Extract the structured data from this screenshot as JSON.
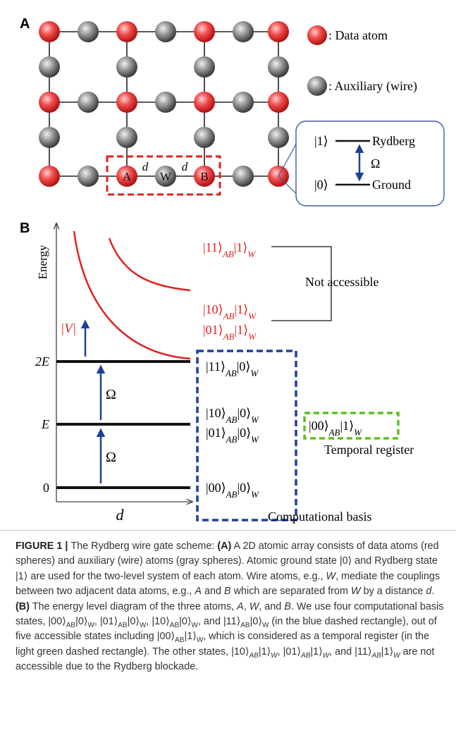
{
  "panel_a": {
    "label": "A",
    "legend": [
      ": Data atom",
      ": Auxiliary (wire)"
    ],
    "atom_labels": [
      "A",
      "W",
      "B"
    ],
    "distance_labels": [
      "d",
      "d"
    ],
    "inset": {
      "upper_state": "|1⟩",
      "upper_name": "Rydberg",
      "coupling": "Ω",
      "lower_state": "|0⟩",
      "lower_name": "Ground"
    }
  },
  "panel_b": {
    "label": "B",
    "y_axis": "Energy",
    "x_axis": "d",
    "levels": [
      "0",
      "E",
      "2E"
    ],
    "couplings": [
      "Ω",
      "Ω"
    ],
    "interaction": "|V|",
    "inaccessible_states": [
      [
        {
          "text": "|11⟩"
        },
        {
          "text": "AB",
          "style": "sub-italic"
        },
        {
          "text": "|1⟩"
        },
        {
          "text": "W",
          "style": "sub-italic"
        }
      ],
      [
        {
          "text": "|10⟩"
        },
        {
          "text": "AB",
          "style": "sub-italic"
        },
        {
          "text": "|1⟩"
        },
        {
          "text": "W",
          "style": "sub-italic"
        }
      ],
      [
        {
          "text": "|01⟩"
        },
        {
          "text": "AB",
          "style": "sub-italic"
        },
        {
          "text": "|1⟩"
        },
        {
          "text": "W",
          "style": "sub-italic"
        }
      ]
    ],
    "not_accessible": "Not accessible",
    "basis_states": [
      [
        {
          "text": "|11⟩"
        },
        {
          "text": "AB",
          "style": "sub-italic"
        },
        {
          "text": "|0⟩"
        },
        {
          "text": "W",
          "style": "sub-italic"
        }
      ],
      [
        {
          "text": "|10⟩"
        },
        {
          "text": "AB",
          "style": "sub-italic"
        },
        {
          "text": "|0⟩"
        },
        {
          "text": "W",
          "style": "sub-italic"
        }
      ],
      [
        {
          "text": "|01⟩"
        },
        {
          "text": "AB",
          "style": "sub-italic"
        },
        {
          "text": "|0⟩"
        },
        {
          "text": "W",
          "style": "sub-italic"
        }
      ],
      [
        {
          "text": "|00⟩"
        },
        {
          "text": "AB",
          "style": "sub-italic"
        },
        {
          "text": "|0⟩"
        },
        {
          "text": "W",
          "style": "sub-italic"
        }
      ]
    ],
    "temporal_state": [
      {
        "text": "|00⟩"
      },
      {
        "text": "AB",
        "style": "sub-italic"
      },
      {
        "text": "|1⟩"
      },
      {
        "text": "W",
        "style": "sub-italic"
      }
    ],
    "temporal_register": "Temporal register",
    "computational_basis": "Computational basis"
  },
  "caption": [
    {
      "text": "FIGURE 1 | ",
      "style": "bold"
    },
    {
      "text": "The Rydberg wire gate scheme: "
    },
    {
      "text": "(A)",
      "style": "bold"
    },
    {
      "text": " A 2D atomic array consists of data atoms (red spheres) and auxiliary (wire) atoms (gray spheres). Atomic ground state |0⟩ and Rydberg state |1⟩ are used for the two-level system of each atom. Wire atoms, e.g., "
    },
    {
      "text": "W",
      "style": "italic"
    },
    {
      "text": ", mediate the couplings between two adjacent data atoms, e.g., "
    },
    {
      "text": "A",
      "style": "italic"
    },
    {
      "text": " and "
    },
    {
      "text": "B",
      "style": "italic"
    },
    {
      "text": " which are separated from "
    },
    {
      "text": "W",
      "style": "italic"
    },
    {
      "text": " by a distance "
    },
    {
      "text": "d",
      "style": "italic"
    },
    {
      "text": ". "
    },
    {
      "text": "(B)",
      "style": "bold"
    },
    {
      "text": " The energy level diagram of the three atoms, "
    },
    {
      "text": "A",
      "style": "italic"
    },
    {
      "text": ", "
    },
    {
      "text": "W",
      "style": "italic"
    },
    {
      "text": ", and "
    },
    {
      "text": "B",
      "style": "italic"
    },
    {
      "text": ". We use four computational basis states, |00⟩"
    },
    {
      "text": "AB",
      "style": "sub"
    },
    {
      "text": "|0⟩"
    },
    {
      "text": "W",
      "style": "sub"
    },
    {
      "text": ", |01⟩"
    },
    {
      "text": "AB",
      "style": "sub"
    },
    {
      "text": "|0⟩"
    },
    {
      "text": "W",
      "style": "sub"
    },
    {
      "text": ", |10⟩"
    },
    {
      "text": "AB",
      "style": "sub"
    },
    {
      "text": "|0⟩"
    },
    {
      "text": "W",
      "style": "sub"
    },
    {
      "text": ", and |11⟩"
    },
    {
      "text": "AB",
      "style": "sub"
    },
    {
      "text": "|0⟩"
    },
    {
      "text": "W",
      "style": "sub"
    },
    {
      "text": " (in the blue dashed rectangle), out of five accessible states including |00⟩"
    },
    {
      "text": "AB",
      "style": "sub"
    },
    {
      "text": "|1⟩"
    },
    {
      "text": "W",
      "style": "sub"
    },
    {
      "text": ", which is considered as a temporal register (in the light green dashed rectangle). The other states, |10⟩"
    },
    {
      "text": "AB",
      "style": "sub-italic"
    },
    {
      "text": "|1⟩"
    },
    {
      "text": "W",
      "style": "sub-italic"
    },
    {
      "text": ", |01⟩"
    },
    {
      "text": "AB",
      "style": "sub-italic"
    },
    {
      "text": "|1⟩"
    },
    {
      "text": "W",
      "style": "sub-italic"
    },
    {
      "text": ", and |11⟩"
    },
    {
      "text": "AB",
      "style": "sub-italic"
    },
    {
      "text": "|1⟩"
    },
    {
      "text": "W",
      "style": "sub-italic"
    },
    {
      "text": " are not accessible due to the Rydberg blockade."
    }
  ]
}
